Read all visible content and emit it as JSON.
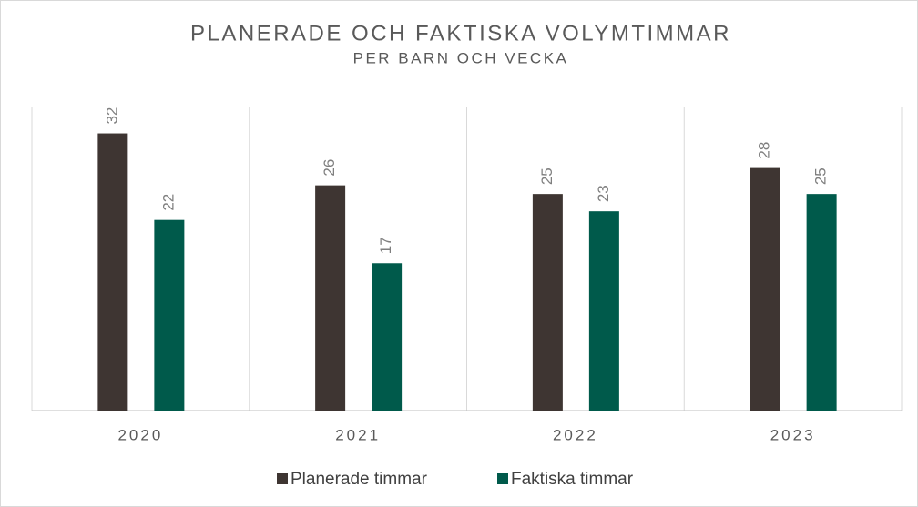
{
  "chart_data": {
    "type": "bar",
    "title": "PLANERADE OCH FAKTISKA VOLYMTIMMAR",
    "subtitle": "PER BARN OCH VECKA",
    "categories": [
      "2020",
      "2021",
      "2022",
      "2023"
    ],
    "series": [
      {
        "name": "Planerade timmar",
        "color": "#3e3532",
        "values": [
          32,
          26,
          25,
          28
        ]
      },
      {
        "name": "Faktiska timmar",
        "color": "#005a4b",
        "values": [
          22,
          17,
          23,
          25
        ]
      }
    ],
    "ylim": [
      0,
      35
    ],
    "legend": "bottom"
  }
}
